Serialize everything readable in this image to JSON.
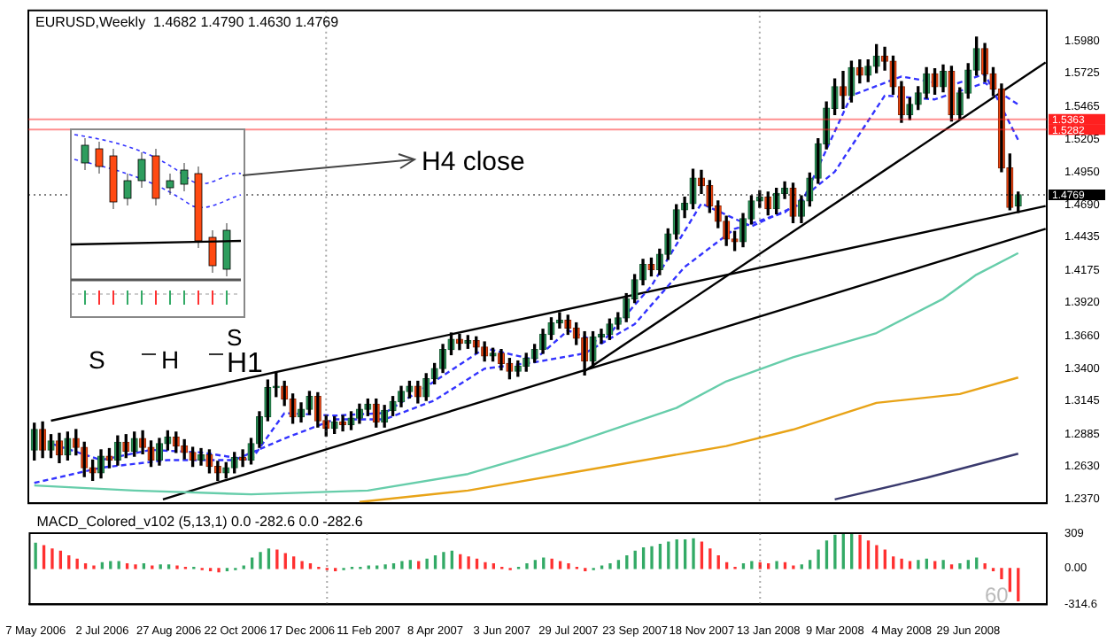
{
  "chart_data": [
    {
      "type": "candlestick",
      "title": "EURUSD,Weekly  1.4682 1.4790 1.4630 1.4769",
      "tick_labels": "y",
      "x": [
        "2006-05-07",
        "2006-05-14",
        "2006-05-21",
        "2006-05-28",
        "2006-06-04",
        "2006-06-11",
        "2006-06-18",
        "2006-06-25",
        "2006-07-02",
        "2006-07-09",
        "2006-07-16",
        "2006-07-23",
        "2006-07-30",
        "2006-08-06",
        "2006-08-13",
        "2006-08-20",
        "2006-08-27",
        "2006-09-03",
        "2006-09-10",
        "2006-09-17",
        "2006-09-24",
        "2006-10-01",
        "2006-10-08",
        "2006-10-15",
        "2006-10-22",
        "2006-10-29",
        "2006-11-05",
        "2006-11-12",
        "2006-11-19",
        "2006-11-26",
        "2006-12-03",
        "2006-12-10",
        "2006-12-17",
        "2006-12-24",
        "2006-12-31",
        "2007-01-07",
        "2007-01-14",
        "2007-01-21",
        "2007-01-28",
        "2007-02-04",
        "2007-02-11",
        "2007-02-18",
        "2007-02-25",
        "2007-03-04",
        "2007-03-11",
        "2007-03-18",
        "2007-03-25",
        "2007-04-01",
        "2007-04-08",
        "2007-04-15",
        "2007-04-22",
        "2007-04-29",
        "2007-05-06",
        "2007-05-13",
        "2007-05-20",
        "2007-05-27",
        "2007-06-03",
        "2007-06-10",
        "2007-06-17",
        "2007-06-24",
        "2007-07-01",
        "2007-07-08",
        "2007-07-15",
        "2007-07-22",
        "2007-07-29",
        "2007-08-05",
        "2007-08-12",
        "2007-08-19",
        "2007-08-26",
        "2007-09-02",
        "2007-09-09",
        "2007-09-16",
        "2007-09-23",
        "2007-09-30",
        "2007-10-07",
        "2007-10-14",
        "2007-10-21",
        "2007-10-28",
        "2007-11-04",
        "2007-11-11",
        "2007-11-18",
        "2007-11-25",
        "2007-12-02",
        "2007-12-09",
        "2007-12-16",
        "2007-12-23",
        "2007-12-30",
        "2008-01-06",
        "2008-01-13",
        "2008-01-20",
        "2008-01-27",
        "2008-02-03",
        "2008-02-10",
        "2008-02-17",
        "2008-02-24",
        "2008-03-02",
        "2008-03-09",
        "2008-03-16",
        "2008-03-23",
        "2008-03-30",
        "2008-04-06",
        "2008-04-13",
        "2008-04-20",
        "2008-04-27",
        "2008-05-04",
        "2008-05-11",
        "2008-05-18",
        "2008-05-25",
        "2008-06-01",
        "2008-06-08",
        "2008-06-15",
        "2008-06-22",
        "2008-06-29",
        "2008-07-06",
        "2008-07-13",
        "2008-07-20",
        "2008-07-27",
        "2008-08-03",
        "2008-08-10"
      ],
      "ohlc": [
        [
          1.276,
          1.297,
          1.268,
          1.292
        ],
        [
          1.292,
          1.298,
          1.27,
          1.276
        ],
        [
          1.276,
          1.288,
          1.27,
          1.283
        ],
        [
          1.283,
          1.289,
          1.266,
          1.272
        ],
        [
          1.272,
          1.29,
          1.268,
          1.285
        ],
        [
          1.285,
          1.292,
          1.272,
          1.278
        ],
        [
          1.278,
          1.282,
          1.255,
          1.262
        ],
        [
          1.262,
          1.268,
          1.252,
          1.258
        ],
        [
          1.258,
          1.276,
          1.254,
          1.271
        ],
        [
          1.271,
          1.277,
          1.262,
          1.268
        ],
        [
          1.268,
          1.287,
          1.264,
          1.282
        ],
        [
          1.282,
          1.288,
          1.27,
          1.275
        ],
        [
          1.275,
          1.29,
          1.271,
          1.285
        ],
        [
          1.285,
          1.291,
          1.273,
          1.278
        ],
        [
          1.278,
          1.283,
          1.263,
          1.268
        ],
        [
          1.268,
          1.285,
          1.264,
          1.281
        ],
        [
          1.281,
          1.291,
          1.276,
          1.286
        ],
        [
          1.286,
          1.29,
          1.274,
          1.279
        ],
        [
          1.279,
          1.284,
          1.269,
          1.274
        ],
        [
          1.274,
          1.278,
          1.263,
          1.268
        ],
        [
          1.268,
          1.277,
          1.264,
          1.272
        ],
        [
          1.272,
          1.276,
          1.258,
          1.263
        ],
        [
          1.263,
          1.267,
          1.252,
          1.258
        ],
        [
          1.258,
          1.266,
          1.254,
          1.262
        ],
        [
          1.262,
          1.274,
          1.258,
          1.27
        ],
        [
          1.27,
          1.276,
          1.263,
          1.268
        ],
        [
          1.268,
          1.285,
          1.265,
          1.281
        ],
        [
          1.281,
          1.306,
          1.278,
          1.302
        ],
        [
          1.302,
          1.331,
          1.299,
          1.325
        ],
        [
          1.325,
          1.337,
          1.318,
          1.326
        ],
        [
          1.326,
          1.33,
          1.311,
          1.316
        ],
        [
          1.316,
          1.32,
          1.297,
          1.302
        ],
        [
          1.302,
          1.313,
          1.298,
          1.308
        ],
        [
          1.308,
          1.322,
          1.304,
          1.318
        ],
        [
          1.318,
          1.321,
          1.294,
          1.299
        ],
        [
          1.299,
          1.303,
          1.287,
          1.293
        ],
        [
          1.293,
          1.302,
          1.289,
          1.298
        ],
        [
          1.298,
          1.303,
          1.291,
          1.296
        ],
        [
          1.296,
          1.306,
          1.292,
          1.301
        ],
        [
          1.301,
          1.312,
          1.297,
          1.308
        ],
        [
          1.308,
          1.316,
          1.303,
          1.312
        ],
        [
          1.312,
          1.316,
          1.294,
          1.298
        ],
        [
          1.298,
          1.311,
          1.294,
          1.307
        ],
        [
          1.307,
          1.318,
          1.303,
          1.314
        ],
        [
          1.314,
          1.326,
          1.31,
          1.322
        ],
        [
          1.322,
          1.33,
          1.317,
          1.326
        ],
        [
          1.326,
          1.33,
          1.313,
          1.318
        ],
        [
          1.318,
          1.336,
          1.315,
          1.332
        ],
        [
          1.332,
          1.344,
          1.328,
          1.34
        ],
        [
          1.34,
          1.359,
          1.337,
          1.355
        ],
        [
          1.355,
          1.368,
          1.351,
          1.363
        ],
        [
          1.363,
          1.367,
          1.355,
          1.36
        ],
        [
          1.36,
          1.366,
          1.356,
          1.362
        ],
        [
          1.362,
          1.365,
          1.352,
          1.357
        ],
        [
          1.357,
          1.361,
          1.346,
          1.35
        ],
        [
          1.35,
          1.356,
          1.346,
          1.352
        ],
        [
          1.352,
          1.355,
          1.339,
          1.344
        ],
        [
          1.344,
          1.348,
          1.332,
          1.338
        ],
        [
          1.338,
          1.346,
          1.334,
          1.342
        ],
        [
          1.342,
          1.352,
          1.338,
          1.348
        ],
        [
          1.348,
          1.359,
          1.345,
          1.355
        ],
        [
          1.355,
          1.371,
          1.352,
          1.367
        ],
        [
          1.367,
          1.38,
          1.363,
          1.376
        ],
        [
          1.376,
          1.384,
          1.372,
          1.378
        ],
        [
          1.378,
          1.382,
          1.367,
          1.372
        ],
        [
          1.372,
          1.376,
          1.359,
          1.364
        ],
        [
          1.364,
          1.369,
          1.335,
          1.346
        ],
        [
          1.346,
          1.369,
          1.342,
          1.365
        ],
        [
          1.365,
          1.371,
          1.36,
          1.367
        ],
        [
          1.367,
          1.379,
          1.363,
          1.375
        ],
        [
          1.375,
          1.384,
          1.371,
          1.38
        ],
        [
          1.38,
          1.399,
          1.377,
          1.395
        ],
        [
          1.395,
          1.414,
          1.392,
          1.41
        ],
        [
          1.41,
          1.426,
          1.406,
          1.422
        ],
        [
          1.422,
          1.427,
          1.413,
          1.418
        ],
        [
          1.418,
          1.434,
          1.414,
          1.43
        ],
        [
          1.43,
          1.45,
          1.426,
          1.446
        ],
        [
          1.446,
          1.469,
          1.442,
          1.465
        ],
        [
          1.465,
          1.475,
          1.459,
          1.47
        ],
        [
          1.47,
          1.497,
          1.466,
          1.49
        ],
        [
          1.49,
          1.496,
          1.478,
          1.484
        ],
        [
          1.484,
          1.488,
          1.463,
          1.468
        ],
        [
          1.468,
          1.472,
          1.451,
          1.456
        ],
        [
          1.456,
          1.46,
          1.437,
          1.442
        ],
        [
          1.442,
          1.448,
          1.433,
          1.44
        ],
        [
          1.44,
          1.462,
          1.436,
          1.458
        ],
        [
          1.458,
          1.476,
          1.454,
          1.472
        ],
        [
          1.472,
          1.48,
          1.467,
          1.475
        ],
        [
          1.475,
          1.479,
          1.461,
          1.466
        ],
        [
          1.466,
          1.482,
          1.462,
          1.478
        ],
        [
          1.478,
          1.487,
          1.474,
          1.482
        ],
        [
          1.482,
          1.486,
          1.455,
          1.46
        ],
        [
          1.46,
          1.476,
          1.455,
          1.472
        ],
        [
          1.472,
          1.494,
          1.468,
          1.49
        ],
        [
          1.49,
          1.521,
          1.486,
          1.517
        ],
        [
          1.517,
          1.55,
          1.513,
          1.545
        ],
        [
          1.545,
          1.568,
          1.54,
          1.562
        ],
        [
          1.562,
          1.574,
          1.545,
          1.555
        ],
        [
          1.555,
          1.582,
          1.55,
          1.577
        ],
        [
          1.577,
          1.583,
          1.565,
          1.571
        ],
        [
          1.571,
          1.583,
          1.566,
          1.578
        ],
        [
          1.578,
          1.595,
          1.573,
          1.586
        ],
        [
          1.586,
          1.593,
          1.575,
          1.582
        ],
        [
          1.582,
          1.586,
          1.556,
          1.562
        ],
        [
          1.562,
          1.566,
          1.534,
          1.54
        ],
        [
          1.54,
          1.553,
          1.536,
          1.548
        ],
        [
          1.548,
          1.562,
          1.544,
          1.557
        ],
        [
          1.557,
          1.577,
          1.553,
          1.572
        ],
        [
          1.572,
          1.576,
          1.556,
          1.562
        ],
        [
          1.562,
          1.579,
          1.558,
          1.574
        ],
        [
          1.574,
          1.578,
          1.535,
          1.54
        ],
        [
          1.54,
          1.561,
          1.536,
          1.557
        ],
        [
          1.557,
          1.58,
          1.553,
          1.575
        ],
        [
          1.575,
          1.601,
          1.571,
          1.592
        ],
        [
          1.592,
          1.596,
          1.566,
          1.572
        ],
        [
          1.572,
          1.577,
          1.555,
          1.56
        ],
        [
          1.56,
          1.564,
          1.495,
          1.498
        ],
        [
          1.498,
          1.509,
          1.465,
          1.467
        ],
        [
          1.4682,
          1.479,
          1.463,
          1.4769
        ]
      ],
      "series": [
        {
          "type": "line",
          "color": "#3333ff",
          "line_style": "dashed",
          "x": [
            "2006-05-21",
            "2006-07-02",
            "2006-08-13",
            "2006-09-24",
            "2006-11-05",
            "2006-12-03",
            "2007-01-14",
            "2007-02-25",
            "2007-04-08",
            "2007-05-20",
            "2007-07-01",
            "2007-07-29",
            "2007-08-26",
            "2007-10-07",
            "2007-11-18",
            "2007-12-30",
            "2008-02-10",
            "2008-03-23",
            "2008-05-04",
            "2008-06-15",
            "2008-07-13",
            "2008-08-10"
          ],
          "values": [
            1.281,
            1.268,
            1.276,
            1.274,
            1.268,
            1.305,
            1.303,
            1.305,
            1.33,
            1.356,
            1.347,
            1.37,
            1.36,
            1.405,
            1.47,
            1.452,
            1.47,
            1.555,
            1.57,
            1.563,
            1.572,
            1.52
          ]
        },
        {
          "type": "line",
          "color": "#3333ff",
          "line_style": "dashed",
          "x": [
            "2006-05-07",
            "2006-07-02",
            "2006-08-27",
            "2006-10-22",
            "2006-12-03",
            "2007-01-14",
            "2007-02-25",
            "2007-04-08",
            "2007-05-20",
            "2007-07-01",
            "2007-08-12",
            "2007-09-23",
            "2007-11-04",
            "2007-12-16",
            "2008-01-27",
            "2008-03-09",
            "2008-04-20",
            "2008-06-01",
            "2008-07-13",
            "2008-08-10"
          ],
          "values": [
            1.25,
            1.262,
            1.268,
            1.268,
            1.285,
            1.3,
            1.3,
            1.315,
            1.34,
            1.345,
            1.352,
            1.375,
            1.42,
            1.45,
            1.463,
            1.495,
            1.555,
            1.552,
            1.565,
            1.548
          ]
        },
        {
          "type": "line",
          "color": "#66cdaa",
          "line_style": "solid",
          "x": [
            "2006-05-07",
            "2006-07-30",
            "2006-11-05",
            "2007-02-11",
            "2007-05-06",
            "2007-07-29",
            "2007-10-28",
            "2007-12-09",
            "2008-02-03",
            "2008-04-13",
            "2008-06-08",
            "2008-07-06",
            "2008-08-10"
          ],
          "values": [
            1.248,
            1.244,
            1.241,
            1.244,
            1.257,
            1.28,
            1.309,
            1.33,
            1.349,
            1.368,
            1.395,
            1.414,
            1.431
          ]
        },
        {
          "type": "line",
          "color": "#e8a317",
          "line_style": "solid",
          "x": [
            "2007-02-04",
            "2007-05-06",
            "2007-08-19",
            "2007-12-09",
            "2008-02-03",
            "2008-04-13",
            "2008-06-22",
            "2008-08-10"
          ],
          "values": [
            1.235,
            1.244,
            1.261,
            1.279,
            1.292,
            1.313,
            1.32,
            1.333
          ]
        },
        {
          "type": "line",
          "color": "#3a3a6e",
          "line_style": "solid",
          "x": [
            "2008-03-09",
            "2008-05-25",
            "2008-08-10"
          ],
          "values": [
            1.237,
            1.254,
            1.273
          ]
        },
        {
          "type": "line",
          "color": "#000000",
          "line_style": "solid",
          "x": [
            "2006-05-21",
            "2008-09-02"
          ],
          "values": [
            1.299,
            1.468
          ]
        },
        {
          "type": "line",
          "color": "#000000",
          "line_style": "solid",
          "x": [
            "2006-08-23",
            "2008-09-02"
          ],
          "values": [
            1.237,
            1.45
          ]
        },
        {
          "type": "line",
          "color": "#000000",
          "line_style": "solid",
          "x": [
            "2007-08-12",
            "2008-09-02"
          ],
          "values": [
            1.338,
            1.581
          ]
        }
      ],
      "xlim": [
        "2006-05-02",
        "2008-09-03"
      ],
      "ylim": [
        1.234,
        1.622
      ],
      "yticks": [
        {
          "value": 1.598,
          "label": "1.5980"
        },
        {
          "value": 1.5725,
          "label": "1.5725"
        },
        {
          "value": 1.5465,
          "label": "1.5465"
        },
        {
          "value": 1.5205,
          "label": "1.5205"
        },
        {
          "value": 1.495,
          "label": "1.4950"
        },
        {
          "value": 1.469,
          "label": "1.4690"
        },
        {
          "value": 1.4435,
          "label": "1.4435"
        },
        {
          "value": 1.4175,
          "label": "1.4175"
        },
        {
          "value": 1.392,
          "label": "1.3920"
        },
        {
          "value": 1.366,
          "label": "1.3660"
        },
        {
          "value": 1.34,
          "label": "1.3400"
        },
        {
          "value": 1.3145,
          "label": "1.3145"
        },
        {
          "value": 1.2885,
          "label": "1.2885"
        },
        {
          "value": 1.263,
          "label": "1.2630"
        },
        {
          "value": 1.237,
          "label": "1.2370"
        }
      ],
      "ref_lines": [
        {
          "axis": "y",
          "value": 1.5363,
          "label": "1.5363",
          "color": "#ff2020",
          "line_style": "solid"
        },
        {
          "axis": "y",
          "value": 1.5282,
          "label": "1.5282",
          "color": "#ff2020",
          "line_style": "solid"
        },
        {
          "axis": "y",
          "value": 1.4769,
          "label": "1.4769",
          "color": "#000000",
          "line_style": "dotted"
        },
        {
          "axis": "x",
          "value": "2007-01-07",
          "line_style": "dotted",
          "color": "#555555"
        },
        {
          "axis": "x",
          "value": "2008-01-06",
          "line_style": "dotted",
          "color": "#555555"
        }
      ],
      "annotations": [
        "H4 close",
        "S",
        "H",
        "S",
        "H1"
      ]
    },
    {
      "type": "bar",
      "title": "MACD_Colored_v102 (5,13,1) 0.0 -282.6 0.0 -282.6",
      "x": [
        "2006-05-07",
        "2006-05-14",
        "2006-05-21",
        "2006-05-28",
        "2006-06-04",
        "2006-06-11",
        "2006-06-18",
        "2006-06-25",
        "2006-07-02",
        "2006-07-09",
        "2006-07-16",
        "2006-07-23",
        "2006-07-30",
        "2006-08-06",
        "2006-08-13",
        "2006-08-20",
        "2006-08-27",
        "2006-09-03",
        "2006-09-10",
        "2006-09-17",
        "2006-09-24",
        "2006-10-01",
        "2006-10-08",
        "2006-10-15",
        "2006-10-22",
        "2006-10-29",
        "2006-11-05",
        "2006-11-12",
        "2006-11-19",
        "2006-11-26",
        "2006-12-03",
        "2006-12-10",
        "2006-12-17",
        "2006-12-24",
        "2006-12-31",
        "2007-01-07",
        "2007-01-14",
        "2007-01-21",
        "2007-01-28",
        "2007-02-04",
        "2007-02-11",
        "2007-02-18",
        "2007-02-25",
        "2007-03-04",
        "2007-03-11",
        "2007-03-18",
        "2007-03-25",
        "2007-04-01",
        "2007-04-08",
        "2007-04-15",
        "2007-04-22",
        "2007-04-29",
        "2007-05-06",
        "2007-05-13",
        "2007-05-20",
        "2007-05-27",
        "2007-06-03",
        "2007-06-10",
        "2007-06-17",
        "2007-06-24",
        "2007-07-01",
        "2007-07-08",
        "2007-07-15",
        "2007-07-22",
        "2007-07-29",
        "2007-08-05",
        "2007-08-12",
        "2007-08-19",
        "2007-08-26",
        "2007-09-02",
        "2007-09-09",
        "2007-09-16",
        "2007-09-23",
        "2007-09-30",
        "2007-10-07",
        "2007-10-14",
        "2007-10-21",
        "2007-10-28",
        "2007-11-04",
        "2007-11-11",
        "2007-11-18",
        "2007-11-25",
        "2007-12-02",
        "2007-12-09",
        "2007-12-16",
        "2007-12-23",
        "2007-12-30",
        "2008-01-06",
        "2008-01-13",
        "2008-01-20",
        "2008-01-27",
        "2008-02-03",
        "2008-02-10",
        "2008-02-17",
        "2008-02-24",
        "2008-03-02",
        "2008-03-09",
        "2008-03-16",
        "2008-03-23",
        "2008-03-30",
        "2008-04-06",
        "2008-04-13",
        "2008-04-20",
        "2008-04-27",
        "2008-05-04",
        "2008-05-11",
        "2008-05-18",
        "2008-05-25",
        "2008-06-01",
        "2008-06-08",
        "2008-06-15",
        "2008-06-22",
        "2008-06-29",
        "2008-07-06",
        "2008-07-13",
        "2008-07-20",
        "2008-07-27",
        "2008-08-03",
        "2008-08-10"
      ],
      "values": [
        220,
        200,
        170,
        150,
        110,
        80,
        40,
        20,
        50,
        60,
        60,
        40,
        30,
        40,
        20,
        30,
        30,
        20,
        10,
        10,
        -10,
        -20,
        -30,
        -20,
        -10,
        20,
        90,
        140,
        170,
        160,
        130,
        100,
        60,
        40,
        10,
        -10,
        -20,
        -10,
        10,
        10,
        20,
        20,
        30,
        40,
        60,
        70,
        60,
        80,
        110,
        140,
        150,
        120,
        100,
        80,
        50,
        40,
        10,
        -10,
        10,
        40,
        70,
        90,
        80,
        60,
        40,
        10,
        -20,
        -10,
        20,
        40,
        70,
        110,
        150,
        180,
        190,
        210,
        230,
        250,
        250,
        260,
        230,
        170,
        110,
        50,
        10,
        40,
        60,
        50,
        40,
        60,
        50,
        20,
        30,
        70,
        160,
        240,
        290,
        300,
        309,
        290,
        240,
        200,
        160,
        100,
        80,
        60,
        70,
        80,
        60,
        70,
        30,
        40,
        70,
        90,
        40,
        -20,
        -90,
        -200,
        -282.6
      ],
      "xlim": [
        "2006-05-02",
        "2008-09-03"
      ],
      "xticks": [
        {
          "value": "2006-05-07",
          "label": "7 May 2006"
        },
        {
          "value": "2006-07-02",
          "label": "2 Jul 2006"
        },
        {
          "value": "2006-08-27",
          "label": "27 Aug 2006"
        },
        {
          "value": "2006-10-22",
          "label": "22 Oct 2006"
        },
        {
          "value": "2006-12-17",
          "label": "17 Dec 2006"
        },
        {
          "value": "2007-02-11",
          "label": "11 Feb 2007"
        },
        {
          "value": "2007-04-08",
          "label": "8 Apr 2007"
        },
        {
          "value": "2007-06-03",
          "label": "3 Jun 2007"
        },
        {
          "value": "2007-07-29",
          "label": "29 Jul 2007"
        },
        {
          "value": "2007-09-23",
          "label": "23 Sep 2007"
        },
        {
          "value": "2007-11-18",
          "label": "18 Nov 2007"
        },
        {
          "value": "2008-01-13",
          "label": "13 Jan 2008"
        },
        {
          "value": "2008-03-09",
          "label": "9 Mar 2008"
        },
        {
          "value": "2008-05-04",
          "label": "4 May 2008"
        },
        {
          "value": "2008-06-29",
          "label": "29 Jun 2008"
        }
      ],
      "ylim": [
        -314.6,
        309
      ],
      "yticks": [
        309,
        {
          "value": 0,
          "label": "0.00"
        },
        -314.6
      ],
      "ref_lines": [
        {
          "axis": "x",
          "value": "2007-01-07",
          "line_style": "dotted",
          "color": "#555555"
        },
        {
          "axis": "x",
          "value": "2008-01-06",
          "line_style": "dotted",
          "color": "#555555"
        }
      ],
      "annotations": [
        "60"
      ]
    }
  ]
}
